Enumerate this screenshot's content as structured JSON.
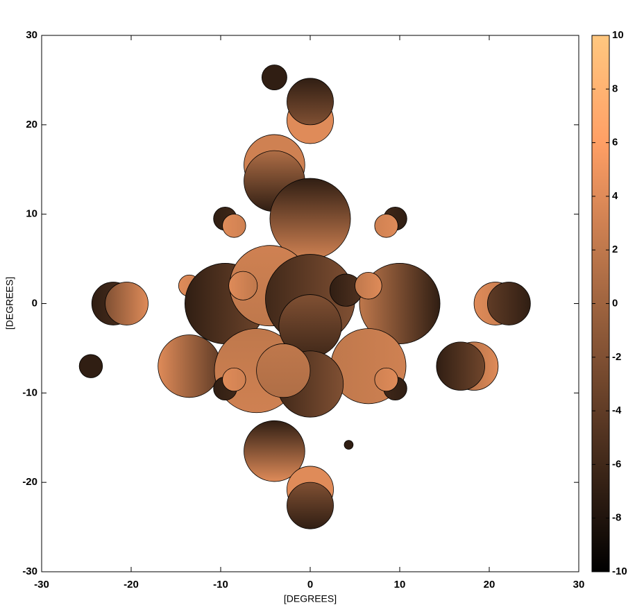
{
  "chart_data": {
    "type": "contour",
    "colormap": "copper",
    "x_label": "[DEGREES]",
    "y_label": "[DEGREES]",
    "xlim": [
      -30,
      30
    ],
    "ylim": [
      -30,
      30
    ],
    "xticks": [
      -30,
      -20,
      -10,
      0,
      10,
      20,
      30
    ],
    "yticks": [
      -30,
      -20,
      -10,
      0,
      10,
      20,
      30
    ],
    "colorbar": {
      "lim": [
        -10,
        10
      ],
      "ticks": [
        -10,
        -8,
        -6,
        -4,
        -2,
        0,
        2,
        4,
        6,
        8,
        10
      ]
    },
    "blobs": [
      {
        "x": -4,
        "y": 25.3,
        "r": 1.4,
        "values": [
          -7,
          -7
        ],
        "orient": "v"
      },
      {
        "x": 0,
        "y": 20.5,
        "r": 2.6,
        "values": [
          4,
          4
        ],
        "orient": "v"
      },
      {
        "x": 0,
        "y": 22.6,
        "r": 2.6,
        "values": [
          -7,
          -2
        ],
        "orient": "v"
      },
      {
        "x": -4,
        "y": 15.5,
        "r": 3.4,
        "values": [
          3,
          3
        ],
        "orient": "v"
      },
      {
        "x": -4,
        "y": 13.7,
        "r": 3.4,
        "values": [
          1,
          -7
        ],
        "orient": "v"
      },
      {
        "x": 0,
        "y": 9.5,
        "r": 4.5,
        "values": [
          -7,
          3
        ],
        "orient": "v"
      },
      {
        "x": -9.5,
        "y": 9.5,
        "r": 1.3,
        "values": [
          -7,
          -6
        ],
        "orient": "h"
      },
      {
        "x": -8.5,
        "y": 8.7,
        "r": 1.3,
        "values": [
          4,
          3
        ],
        "orient": "h"
      },
      {
        "x": 9.5,
        "y": 9.5,
        "r": 1.3,
        "values": [
          -6,
          -7
        ],
        "orient": "h"
      },
      {
        "x": 8.5,
        "y": 8.7,
        "r": 1.3,
        "values": [
          3,
          4
        ],
        "orient": "h"
      },
      {
        "x": -22,
        "y": 0,
        "r": 2.4,
        "values": [
          -7,
          -5
        ],
        "orient": "h"
      },
      {
        "x": -20.5,
        "y": 0,
        "r": 2.4,
        "values": [
          -2,
          4
        ],
        "orient": "h"
      },
      {
        "x": 20.7,
        "y": 0,
        "r": 2.4,
        "values": [
          4,
          2
        ],
        "orient": "h"
      },
      {
        "x": 22.2,
        "y": 0,
        "r": 2.4,
        "values": [
          -4,
          -7
        ],
        "orient": "h"
      },
      {
        "x": -24.5,
        "y": -7,
        "r": 1.3,
        "values": [
          -7,
          -7
        ],
        "orient": "h"
      },
      {
        "x": -13.5,
        "y": -7,
        "r": 3.5,
        "values": [
          4,
          -4
        ],
        "orient": "h"
      },
      {
        "x": 18.3,
        "y": -7,
        "r": 2.7,
        "values": [
          0,
          4
        ],
        "orient": "h"
      },
      {
        "x": 16.8,
        "y": -7,
        "r": 2.7,
        "values": [
          -7,
          -3
        ],
        "orient": "h"
      },
      {
        "x": -13.5,
        "y": 2,
        "r": 1.2,
        "values": [
          4,
          3
        ],
        "orient": "h"
      },
      {
        "x": -12.5,
        "y": 1,
        "r": 1.2,
        "values": [
          -7,
          -8
        ],
        "orient": "h"
      },
      {
        "x": -9.5,
        "y": 0,
        "r": 4.5,
        "values": [
          -7,
          -3
        ],
        "orient": "h"
      },
      {
        "x": 10,
        "y": 0,
        "r": 4.5,
        "values": [
          2,
          -7
        ],
        "orient": "h"
      },
      {
        "x": -4.5,
        "y": 2,
        "r": 4.5,
        "values": [
          3,
          2
        ],
        "orient": "v"
      },
      {
        "x": -6,
        "y": -7.5,
        "r": 4.7,
        "values": [
          2,
          3
        ],
        "orient": "v"
      },
      {
        "x": 6.5,
        "y": -7,
        "r": 4.2,
        "values": [
          2,
          3
        ],
        "orient": "h"
      },
      {
        "x": 0,
        "y": 0.5,
        "r": 5,
        "values": [
          -6,
          -2
        ],
        "orient": "h"
      },
      {
        "x": 0,
        "y": -2.5,
        "r": 3.5,
        "values": [
          -2,
          -6
        ],
        "orient": "v"
      },
      {
        "x": 0,
        "y": -9,
        "r": 3.7,
        "values": [
          -6,
          -2
        ],
        "orient": "h"
      },
      {
        "x": -3,
        "y": -7.5,
        "r": 3,
        "values": [
          2,
          1
        ],
        "orient": "v"
      },
      {
        "x": 4,
        "y": 1.5,
        "r": 1.8,
        "values": [
          -7,
          -5
        ],
        "orient": "h"
      },
      {
        "x": 6.5,
        "y": 2,
        "r": 1.5,
        "values": [
          2,
          4
        ],
        "orient": "h"
      },
      {
        "x": -7.5,
        "y": 2,
        "r": 1.6,
        "values": [
          4,
          2
        ],
        "orient": "h"
      },
      {
        "x": -9.5,
        "y": -9.5,
        "r": 1.3,
        "values": [
          -7,
          -6
        ],
        "orient": "h"
      },
      {
        "x": -8.5,
        "y": -8.5,
        "r": 1.3,
        "values": [
          4,
          3
        ],
        "orient": "h"
      },
      {
        "x": 9.5,
        "y": -9.5,
        "r": 1.3,
        "values": [
          -6,
          -7
        ],
        "orient": "h"
      },
      {
        "x": 8.5,
        "y": -8.5,
        "r": 1.3,
        "values": [
          3,
          4
        ],
        "orient": "h"
      },
      {
        "x": -4,
        "y": -16.5,
        "r": 3.4,
        "values": [
          -7,
          4
        ],
        "orient": "v"
      },
      {
        "x": 0,
        "y": -20.8,
        "r": 2.6,
        "values": [
          4,
          4
        ],
        "orient": "v"
      },
      {
        "x": 0,
        "y": -22.6,
        "r": 2.6,
        "values": [
          -2,
          -7
        ],
        "orient": "v"
      },
      {
        "x": 4.3,
        "y": -15.8,
        "r": 0.5,
        "values": [
          -7,
          -7
        ],
        "orient": "v"
      }
    ]
  }
}
